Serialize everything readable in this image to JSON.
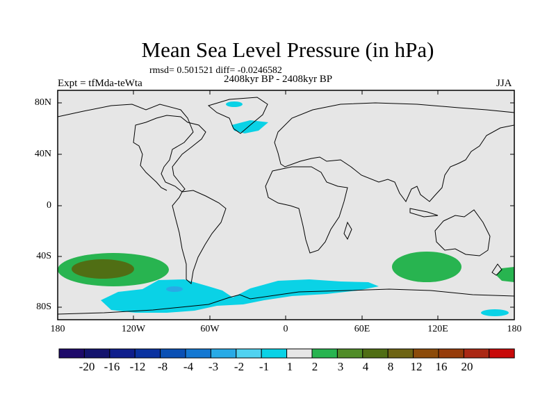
{
  "title": "Mean Sea Level Pressure (in hPa)",
  "stats": "rmsd= 0.501521 diff= -0.0246582",
  "period": "2408kyr BP - 2408kyr BP",
  "experiment": "Expt = tfMda-teWta",
  "season": "JJA",
  "lat_labels": [
    "80N",
    "40N",
    "0",
    "40S",
    "80S"
  ],
  "lon_labels": [
    "180",
    "120W",
    "60W",
    "0",
    "60E",
    "120E",
    "180"
  ],
  "colorbar": {
    "colors": [
      "#1e0a6a",
      "#14146e",
      "#0f1e8c",
      "#0a32a0",
      "#0a50b4",
      "#1478d2",
      "#28aae6",
      "#50d2f0",
      "#0ad2e6",
      "#e6e6e6",
      "#28b450",
      "#508c28",
      "#506e14",
      "#6e6414",
      "#8c4b0a",
      "#963c0a",
      "#aa2814",
      "#c80a0a"
    ],
    "labels": [
      "-20",
      "-16",
      "-12",
      "-8",
      "-4",
      "-3",
      "-2",
      "-1",
      "1",
      "2",
      "3",
      "4",
      "8",
      "12",
      "16",
      "20"
    ]
  },
  "colors": {
    "land_ocean": "#e6e6e6",
    "pos_light": "#28b450",
    "pos_dark": "#506e14",
    "neg_light": "#0ad2e6",
    "neg_mid": "#28aae6"
  }
}
